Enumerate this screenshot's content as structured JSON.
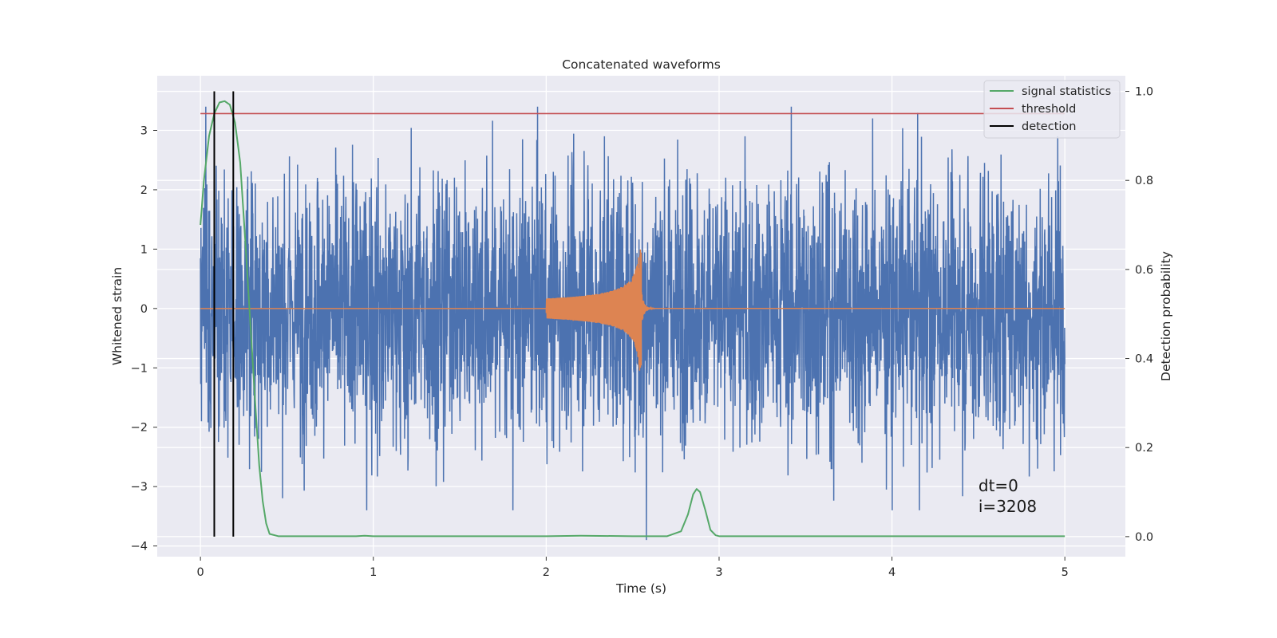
{
  "chart_data": {
    "type": "line",
    "title": "Concatenated waveforms",
    "xlabel": "Time (s)",
    "ylabel_left": "Whitened strain",
    "ylabel_right": "Detection probability",
    "xlim": [
      -0.25,
      5.35
    ],
    "ylim_left": [
      -4.18,
      3.92
    ],
    "ylim_right": [
      -0.045,
      1.035
    ],
    "x_ticks": [
      "0",
      "1",
      "2",
      "3",
      "4",
      "5"
    ],
    "y_ticks_left": [
      "−4",
      "−3",
      "−2",
      "−1",
      "0",
      "1",
      "2",
      "3"
    ],
    "y_ticks_right": [
      "0.0",
      "0.2",
      "0.4",
      "0.6",
      "0.8",
      "1.0"
    ],
    "grid": true,
    "legend_position": "top-right",
    "series": [
      {
        "name": "",
        "axis": "left",
        "kind": "noise",
        "color": "#4c72b0",
        "x_range": [
          0,
          5
        ],
        "typical_amplitude": 1.1,
        "peak_amplitude": 3.4,
        "min_value": -3.9
      },
      {
        "name": "",
        "axis": "left",
        "kind": "chirp",
        "color": "#dd8452",
        "x_range": [
          0,
          5
        ],
        "chirp_start": 2.0,
        "chirp_end": 2.55,
        "peak_amplitude": 1.05,
        "baseline": 0
      },
      {
        "name": "signal statistics",
        "axis": "right",
        "color": "#55a868",
        "x": [
          0,
          0.02,
          0.05,
          0.08,
          0.11,
          0.14,
          0.17,
          0.2,
          0.23,
          0.26,
          0.29,
          0.32,
          0.34,
          0.36,
          0.38,
          0.4,
          0.45,
          0.6,
          0.9,
          0.95,
          1.0,
          1.5,
          2.0,
          2.2,
          2.5,
          2.7,
          2.78,
          2.82,
          2.85,
          2.87,
          2.89,
          2.92,
          2.95,
          2.98,
          3.0,
          3.5,
          4.0,
          4.5,
          5.0
        ],
        "values": [
          0.7,
          0.8,
          0.9,
          0.95,
          0.975,
          0.978,
          0.97,
          0.93,
          0.84,
          0.66,
          0.47,
          0.28,
          0.16,
          0.08,
          0.03,
          0.006,
          0.001,
          0.001,
          0.001,
          0.002,
          0.001,
          0.001,
          0.001,
          0.002,
          0.001,
          0.001,
          0.012,
          0.05,
          0.095,
          0.107,
          0.1,
          0.06,
          0.015,
          0.003,
          0.001,
          0.001,
          0.001,
          0.001,
          0.001
        ]
      },
      {
        "name": "threshold",
        "axis": "right",
        "color": "#c44e52",
        "x": [
          0,
          5
        ],
        "values": [
          0.95,
          0.95
        ]
      },
      {
        "name": "detection",
        "axis": "right",
        "color": "#000000",
        "kind": "vlines",
        "x": [
          0.08,
          0.19
        ],
        "y_range": [
          0,
          1.0
        ]
      }
    ],
    "annotations": [
      "dt=0",
      "i=3208"
    ],
    "colors": {
      "background": "#eaeaf2",
      "grid": "#ffffff",
      "text": "#262626"
    }
  }
}
